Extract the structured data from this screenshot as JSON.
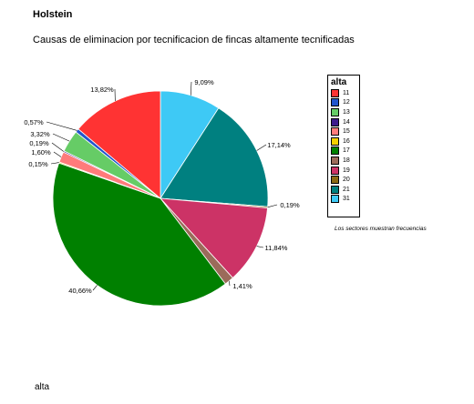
{
  "title": "Holstein",
  "subtitle": "Causas de eliminacion por tecnificacion de fincas altamente tecnificadas",
  "footer_label": "alta",
  "legend_note": "Los sectores muestran frecuencias",
  "chart_data": {
    "type": "pie",
    "legend_title": "alta",
    "legend_placement": "right",
    "slices": [
      {
        "category": "31",
        "value": 9.09,
        "label": "9,09%",
        "color": "#3ec9f5"
      },
      {
        "category": "21",
        "value": 17.14,
        "label": "17,14%",
        "color": "#008080"
      },
      {
        "category": "20",
        "value": 0.19,
        "label": "0,19%",
        "color": "#8b6914"
      },
      {
        "category": "19",
        "value": 11.84,
        "label": "11,84%",
        "color": "#cc3366"
      },
      {
        "category": "18",
        "value": 1.41,
        "label": "1,41%",
        "color": "#9b6b5a"
      },
      {
        "category": "17",
        "value": 40.66,
        "label": "40,66%",
        "color": "#008000"
      },
      {
        "category": "16",
        "value": 0.15,
        "label": "0,15%",
        "color": "#f5d000"
      },
      {
        "category": "15",
        "value": 1.6,
        "label": "1,60%",
        "color": "#ff7b7b"
      },
      {
        "category": "14",
        "value": 0.19,
        "label": "0,19%",
        "color": "#3d1a8c"
      },
      {
        "category": "13",
        "value": 3.32,
        "label": "3,32%",
        "color": "#66cc66"
      },
      {
        "category": "12",
        "value": 0.57,
        "label": "0,57%",
        "color": "#2255cc"
      },
      {
        "category": "11",
        "value": 13.82,
        "label": "13,82%",
        "color": "#ff3333"
      }
    ],
    "legend_items": [
      {
        "label": "11",
        "color": "#ff3333"
      },
      {
        "label": "12",
        "color": "#2255cc"
      },
      {
        "label": "13",
        "color": "#66cc66"
      },
      {
        "label": "14",
        "color": "#3d1a8c"
      },
      {
        "label": "15",
        "color": "#ff7b7b"
      },
      {
        "label": "16",
        "color": "#f5d000"
      },
      {
        "label": "17",
        "color": "#008000"
      },
      {
        "label": "18",
        "color": "#9b6b5a"
      },
      {
        "label": "19",
        "color": "#cc3366"
      },
      {
        "label": "20",
        "color": "#8b6914"
      },
      {
        "label": "21",
        "color": "#008080"
      },
      {
        "label": "31",
        "color": "#3ec9f5"
      }
    ]
  }
}
